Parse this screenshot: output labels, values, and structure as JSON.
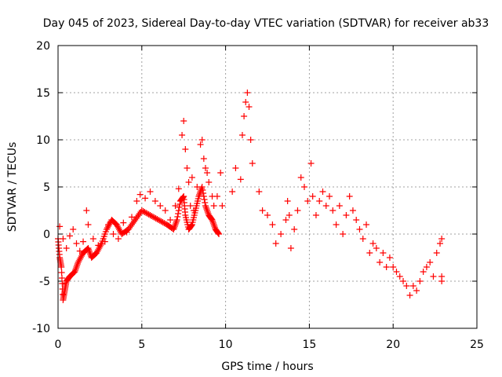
{
  "chart_data": {
    "type": "scatter",
    "title": "Day 045 of 2023, Sidereal Day-to-day VTEC variation (SDTVAR) for receiver ab33",
    "xlabel": "GPS time / hours",
    "ylabel": "SDTVAR / TECUs",
    "xlim": [
      0,
      25
    ],
    "ylim": [
      -10,
      20
    ],
    "xticks": [
      0,
      5,
      10,
      15,
      20,
      25
    ],
    "yticks": [
      -10,
      -5,
      0,
      5,
      10,
      15,
      20
    ],
    "grid": true,
    "marker": "plus",
    "color": "#ff0000",
    "series": [
      {
        "name": "SDTVAR",
        "track_points": [
          [
            0.0,
            -0.5
          ],
          [
            0.1,
            -2.5
          ],
          [
            0.2,
            -3.5
          ],
          [
            0.3,
            -7.0
          ],
          [
            0.4,
            -6.0
          ],
          [
            0.5,
            -5.0
          ],
          [
            0.7,
            -4.5
          ],
          [
            1.0,
            -4.0
          ],
          [
            1.2,
            -3.0
          ],
          [
            1.5,
            -2.0
          ],
          [
            1.8,
            -1.5
          ],
          [
            2.0,
            -2.5
          ],
          [
            2.3,
            -2.0
          ],
          [
            2.6,
            -1.0
          ],
          [
            2.9,
            0.5
          ],
          [
            3.2,
            1.5
          ],
          [
            3.5,
            1.0
          ],
          [
            3.8,
            0.0
          ],
          [
            4.2,
            0.5
          ],
          [
            4.6,
            1.5
          ],
          [
            5.0,
            2.5
          ],
          [
            5.5,
            2.0
          ],
          [
            6.0,
            1.5
          ],
          [
            6.5,
            1.0
          ],
          [
            6.9,
            0.5
          ],
          [
            7.1,
            1.5
          ],
          [
            7.3,
            3.5
          ],
          [
            7.5,
            4.0
          ],
          [
            7.6,
            2.0
          ],
          [
            7.8,
            0.5
          ],
          [
            8.0,
            1.0
          ],
          [
            8.2,
            2.5
          ],
          [
            8.4,
            4.0
          ],
          [
            8.6,
            5.0
          ],
          [
            8.8,
            3.0
          ],
          [
            9.0,
            2.0
          ],
          [
            9.2,
            1.5
          ],
          [
            9.4,
            0.5
          ],
          [
            9.6,
            0.0
          ]
        ],
        "points": [
          [
            0.1,
            0.8
          ],
          [
            0.3,
            -0.5
          ],
          [
            0.5,
            -1.5
          ],
          [
            0.7,
            -0.2
          ],
          [
            0.9,
            0.5
          ],
          [
            1.1,
            -1.0
          ],
          [
            1.3,
            -1.8
          ],
          [
            1.5,
            -0.8
          ],
          [
            1.7,
            2.5
          ],
          [
            1.8,
            1.0
          ],
          [
            2.1,
            -0.5
          ],
          [
            2.4,
            -1.2
          ],
          [
            2.8,
            -0.8
          ],
          [
            3.0,
            1.0
          ],
          [
            3.3,
            0.0
          ],
          [
            3.6,
            -0.5
          ],
          [
            3.9,
            1.2
          ],
          [
            4.1,
            0.2
          ],
          [
            4.4,
            1.8
          ],
          [
            4.7,
            3.5
          ],
          [
            4.9,
            4.2
          ],
          [
            5.2,
            3.8
          ],
          [
            5.5,
            4.5
          ],
          [
            5.8,
            3.5
          ],
          [
            6.1,
            3.0
          ],
          [
            6.4,
            2.5
          ],
          [
            6.7,
            1.5
          ],
          [
            7.0,
            3.0
          ],
          [
            7.2,
            4.8
          ],
          [
            7.4,
            10.5
          ],
          [
            7.5,
            12.0
          ],
          [
            7.6,
            9.0
          ],
          [
            7.7,
            7.0
          ],
          [
            7.8,
            5.5
          ],
          [
            7.9,
            3.0
          ],
          [
            8.0,
            6.0
          ],
          [
            8.1,
            2.5
          ],
          [
            8.3,
            5.0
          ],
          [
            8.5,
            9.5
          ],
          [
            8.6,
            10.0
          ],
          [
            8.7,
            8.0
          ],
          [
            8.8,
            7.0
          ],
          [
            8.9,
            6.5
          ],
          [
            9.0,
            5.5
          ],
          [
            9.2,
            4.0
          ],
          [
            9.3,
            3.0
          ],
          [
            9.5,
            4.0
          ],
          [
            9.7,
            6.5
          ],
          [
            9.8,
            3.0
          ],
          [
            10.4,
            4.5
          ],
          [
            10.6,
            7.0
          ],
          [
            10.9,
            5.8
          ],
          [
            11.0,
            10.5
          ],
          [
            11.1,
            12.5
          ],
          [
            11.2,
            14.0
          ],
          [
            11.3,
            15.0
          ],
          [
            11.4,
            13.5
          ],
          [
            11.5,
            10.0
          ],
          [
            11.6,
            7.5
          ],
          [
            12.0,
            4.5
          ],
          [
            12.2,
            2.5
          ],
          [
            12.5,
            2.0
          ],
          [
            12.8,
            1.0
          ],
          [
            13.0,
            -1.0
          ],
          [
            13.3,
            0.0
          ],
          [
            13.6,
            1.5
          ],
          [
            13.7,
            3.5
          ],
          [
            13.8,
            2.0
          ],
          [
            13.9,
            -1.5
          ],
          [
            14.1,
            0.5
          ],
          [
            14.3,
            2.5
          ],
          [
            14.5,
            6.0
          ],
          [
            14.7,
            5.0
          ],
          [
            14.9,
            3.5
          ],
          [
            15.1,
            7.5
          ],
          [
            15.2,
            4.0
          ],
          [
            15.4,
            2.0
          ],
          [
            15.6,
            3.5
          ],
          [
            15.8,
            4.5
          ],
          [
            16.0,
            3.0
          ],
          [
            16.2,
            4.0
          ],
          [
            16.4,
            2.5
          ],
          [
            16.6,
            1.0
          ],
          [
            16.8,
            3.0
          ],
          [
            17.0,
            0.0
          ],
          [
            17.2,
            2.0
          ],
          [
            17.4,
            4.0
          ],
          [
            17.6,
            2.5
          ],
          [
            17.8,
            1.5
          ],
          [
            18.0,
            0.5
          ],
          [
            18.2,
            -0.5
          ],
          [
            18.4,
            1.0
          ],
          [
            18.6,
            -2.0
          ],
          [
            18.8,
            -1.0
          ],
          [
            19.0,
            -1.5
          ],
          [
            19.2,
            -3.0
          ],
          [
            19.4,
            -2.0
          ],
          [
            19.6,
            -3.5
          ],
          [
            19.8,
            -2.5
          ],
          [
            20.0,
            -3.5
          ],
          [
            20.2,
            -4.0
          ],
          [
            20.4,
            -4.5
          ],
          [
            20.6,
            -5.0
          ],
          [
            20.8,
            -5.5
          ],
          [
            21.0,
            -6.5
          ],
          [
            21.2,
            -5.5
          ],
          [
            21.4,
            -6.0
          ],
          [
            21.6,
            -5.0
          ],
          [
            21.8,
            -4.0
          ],
          [
            22.0,
            -3.5
          ],
          [
            22.2,
            -3.0
          ],
          [
            22.4,
            -4.5
          ],
          [
            22.6,
            -2.0
          ],
          [
            22.8,
            -1.0
          ],
          [
            22.9,
            -0.5
          ],
          [
            22.9,
            -4.5
          ],
          [
            22.9,
            -5.0
          ]
        ]
      }
    ]
  }
}
